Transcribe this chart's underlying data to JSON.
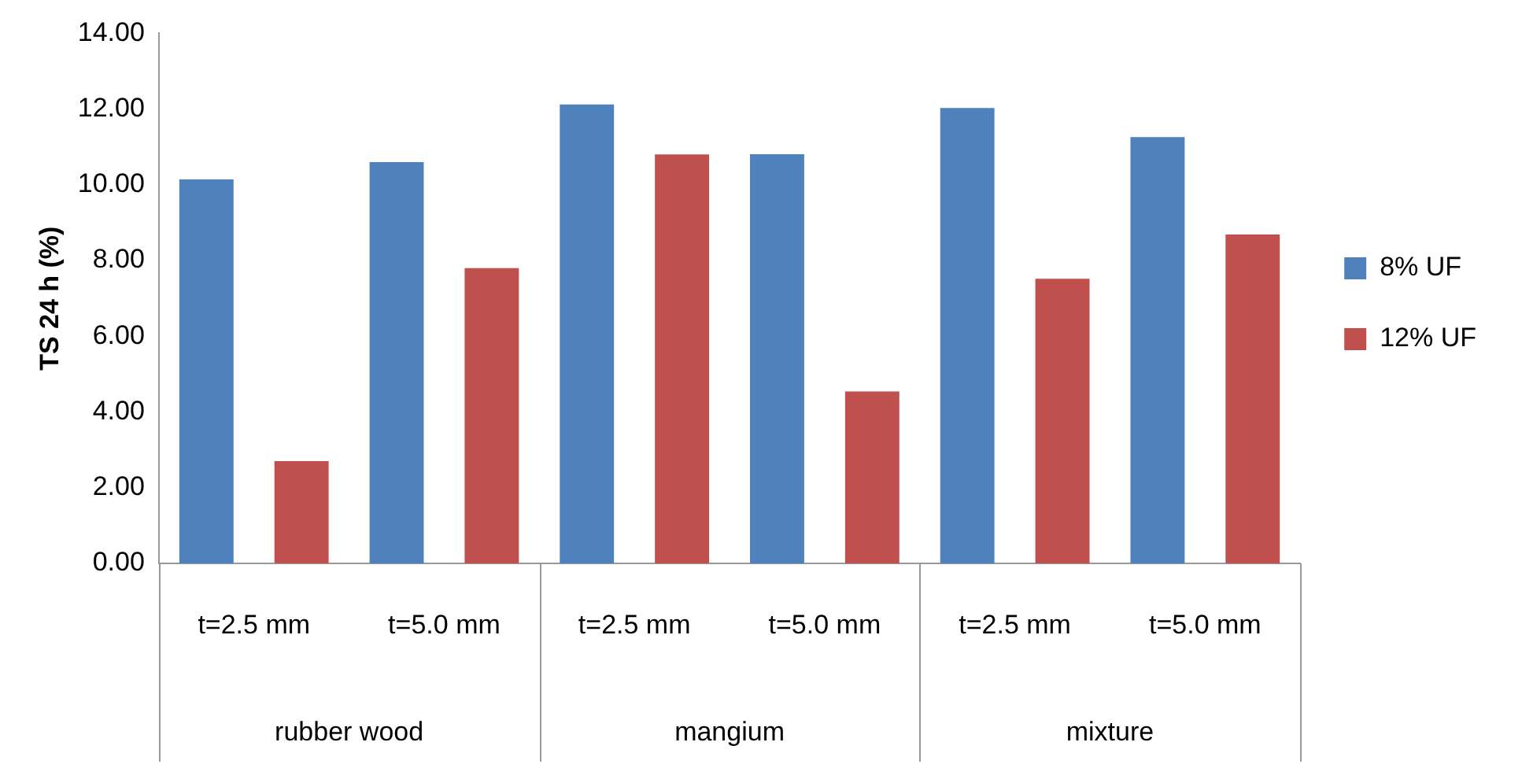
{
  "chart_data": {
    "type": "bar",
    "ylabel": "TS 24 h (%)",
    "categories": [
      "t=2.5 mm",
      "t=5.0 mm",
      "t=2.5 mm",
      "t=5.0 mm",
      "t=2.5 mm",
      "t=5.0 mm"
    ],
    "annotations": [
      "rubber wood",
      "mangium",
      "mixture"
    ],
    "series": [
      {
        "name": "8% UF",
        "color": "#4f81bd",
        "values": [
          10.14,
          10.6,
          12.12,
          10.81,
          12.03,
          11.26
        ]
      },
      {
        "name": "12% UF",
        "color": "#c0504d",
        "values": [
          2.7,
          7.8,
          10.8,
          4.54,
          7.52,
          8.69
        ]
      }
    ],
    "ylim": [
      0,
      14
    ],
    "yticks": [
      {
        "value": 0,
        "label": "0.00"
      },
      {
        "value": 2,
        "label": "2.00"
      },
      {
        "value": 4,
        "label": "4.00"
      },
      {
        "value": 6,
        "label": "6.00"
      },
      {
        "value": 8,
        "label": "8.00"
      },
      {
        "value": 10,
        "label": "10.00"
      },
      {
        "value": 12,
        "label": "12.00"
      },
      {
        "value": 14,
        "label": "14.00"
      }
    ],
    "grid": false,
    "legend": "right"
  }
}
